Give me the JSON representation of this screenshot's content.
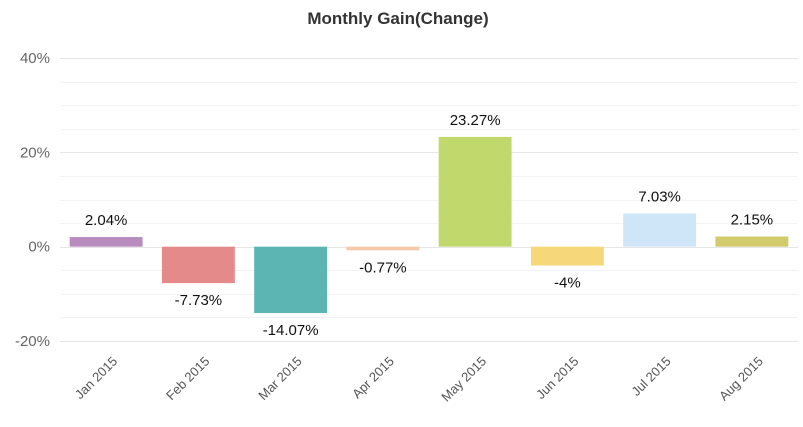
{
  "chart_data": {
    "type": "bar",
    "title": "Monthly Gain(Change)",
    "xlabel": "",
    "ylabel": "",
    "categories": [
      "Jan 2015",
      "Feb 2015",
      "Mar 2015",
      "Apr 2015",
      "May 2015",
      "Jun 2015",
      "Jul 2015",
      "Aug 2015"
    ],
    "values": [
      2.04,
      -7.73,
      -14.07,
      -0.77,
      23.27,
      -4,
      7.03,
      2.15
    ],
    "data_labels": [
      "2.04%",
      "-7.73%",
      "-14.07%",
      "-0.77%",
      "23.27%",
      "-4%",
      "7.03%",
      "2.15%"
    ],
    "bar_colors": [
      "#b88cbf",
      "#e48a8a",
      "#5cb5b3",
      "#f6c9a9",
      "#c0d86c",
      "#f6d77a",
      "#cfe6f8",
      "#d2cb6c"
    ],
    "ylim": [
      -20,
      40
    ],
    "yticks": [
      40,
      20,
      0,
      -20
    ],
    "ytick_labels": [
      "40%",
      "20%",
      "0%",
      "-20%"
    ],
    "grid": true,
    "legend": "none"
  }
}
